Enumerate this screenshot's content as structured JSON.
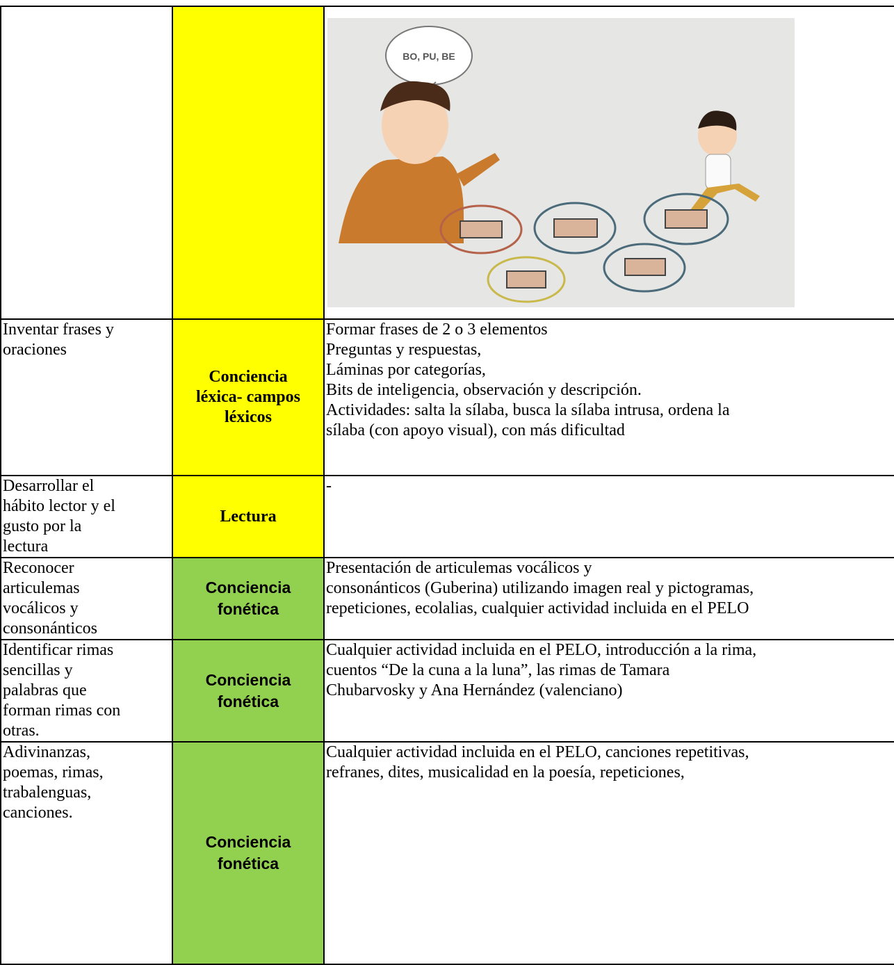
{
  "image_row": {
    "speech": "BO, PU, BE"
  },
  "rows": [
    {
      "objective": [
        "Inventar frases y",
        "oraciones"
      ],
      "area": [
        "Conciencia",
        "léxica- campos",
        "léxicos"
      ],
      "color": "#ffff00",
      "activities": [
        "Formar frases de 2 o 3 elementos",
        "Preguntas y respuestas,",
        "Láminas por categorías,",
        "Bits de inteligencia, observación y descripción.",
        "Actividades: salta la sílaba, busca la sílaba intrusa, ordena la",
        "sílaba (con apoyo visual), con más dificultad"
      ]
    },
    {
      "objective": [
        "Desarrollar el",
        "hábito lector y el",
        "gusto por la",
        "lectura"
      ],
      "area": [
        "Lectura"
      ],
      "color": "#ffff00",
      "activities": [
        "-"
      ]
    },
    {
      "objective": [
        "Reconocer",
        "articulemas",
        "vocálicos y",
        "consonánticos"
      ],
      "area": [
        "Conciencia",
        "fonética"
      ],
      "color": "#92d050",
      "activities": [
        "Presentación de articulemas vocálicos y",
        "consonánticos (Guberina) utilizando imagen real y pictogramas,",
        "repeticiones, ecolalias, cualquier actividad incluida en el PELO"
      ]
    },
    {
      "objective": [
        "Identificar rimas",
        "sencillas y",
        "palabras que",
        "forman rimas con",
        "otras."
      ],
      "area": [
        "Conciencia",
        "fonética"
      ],
      "color": "#92d050",
      "activities": [
        "Cualquier actividad incluida en el PELO, introducción a la rima,",
        "cuentos “De la cuna a la luna”, las rimas de Tamara",
        "Chubarvosky y Ana Hernández (valenciano)"
      ]
    },
    {
      "objective": [
        "Adivinanzas,",
        "poemas, rimas,",
        "trabalenguas,",
        "canciones."
      ],
      "area": [
        "Conciencia",
        "fonética"
      ],
      "color": "#92d050",
      "activities": [
        "Cualquier actividad incluida en el PELO, canciones repetitivas,",
        "refranes, dites, musicalidad en la poesía, repeticiones,"
      ]
    }
  ]
}
